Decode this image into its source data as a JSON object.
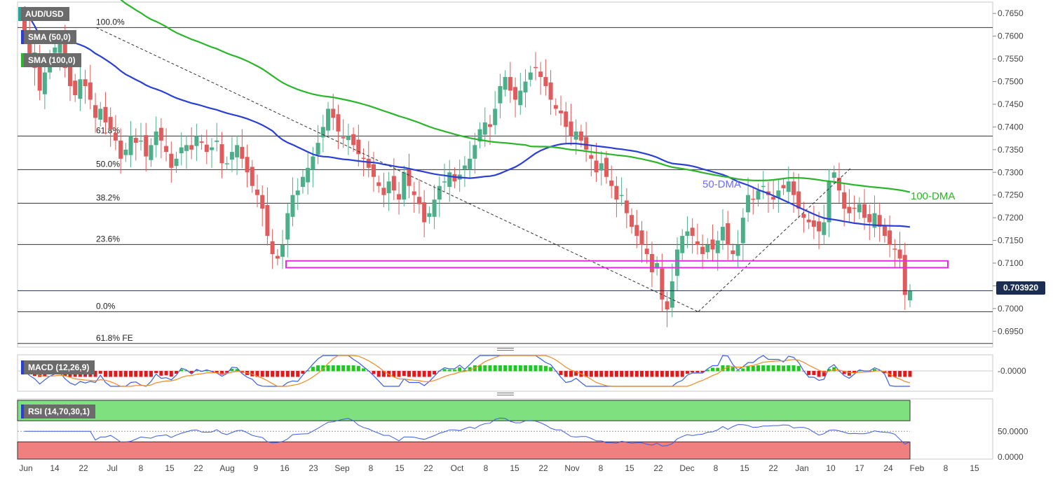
{
  "chart_data": {
    "type": "candlestick",
    "symbol": "AUD/USD",
    "legend": [
      {
        "label": "AUD/USD",
        "color": "#26a69a"
      },
      {
        "label": "SMA (50,0)",
        "color": "#2a3fd4"
      },
      {
        "label": "SMA (100,0)",
        "color": "#2ab52a"
      }
    ],
    "last_price": "0.703920",
    "price_axis": {
      "ylim": [
        0.6915,
        0.7675
      ],
      "ticks": [
        "0.7650",
        "0.7600",
        "0.7550",
        "0.7500",
        "0.7450",
        "0.7400",
        "0.7350",
        "0.7300",
        "0.7250",
        "0.7200",
        "0.7150",
        "0.7100",
        "0.7050",
        "0.7000",
        "0.6950"
      ]
    },
    "date_ticks": [
      "Jun",
      "14",
      "22",
      "Jul",
      "8",
      "15",
      "22",
      "Aug",
      "9",
      "16",
      "23",
      "Sep",
      "8",
      "15",
      "22",
      "Oct",
      "8",
      "15",
      "22",
      "Nov",
      "8",
      "15",
      "22",
      "Dec",
      "8",
      "15",
      "22",
      "Jan",
      "10",
      "17",
      "24",
      "Feb",
      "8",
      "15"
    ],
    "fibonacci": [
      {
        "label": "100.0%",
        "value": 0.7619
      },
      {
        "label": "61.8%",
        "value": 0.738
      },
      {
        "label": "50.0%",
        "value": 0.7306
      },
      {
        "label": "38.2%",
        "value": 0.7232
      },
      {
        "label": "23.6%",
        "value": 0.7141
      },
      {
        "label": "0.0%",
        "value": 0.6993
      },
      {
        "label": "61.8% FE",
        "value": 0.6923
      }
    ],
    "annotations": {
      "ma50_label": "50-DMA",
      "ma100_label": "100-DMA",
      "support_zone": [
        0.709,
        0.7105
      ],
      "retracement_line_from": {
        "date": "Jun 28",
        "value": 0.7619
      },
      "retracement_line_to": {
        "date": "Dec 3",
        "value": 0.6993
      }
    },
    "series": {
      "closes": [
        0.7605,
        0.756,
        0.753,
        0.748,
        0.752,
        0.7555,
        0.7575,
        0.759,
        0.753,
        0.749,
        0.747,
        0.7505,
        0.749,
        0.746,
        0.742,
        0.744,
        0.741,
        0.7395,
        0.737,
        0.733,
        0.735,
        0.738,
        0.7365,
        0.737,
        0.7335,
        0.736,
        0.739,
        0.737,
        0.7345,
        0.731,
        0.733,
        0.7355,
        0.736,
        0.735,
        0.738,
        0.7365,
        0.7345,
        0.7355,
        0.737,
        0.732,
        0.732,
        0.7345,
        0.736,
        0.733,
        0.73,
        0.727,
        0.725,
        0.722,
        0.716,
        0.712,
        0.711,
        0.714,
        0.721,
        0.725,
        0.726,
        0.729,
        0.731,
        0.7335,
        0.7365,
        0.74,
        0.744,
        0.742,
        0.739,
        0.7375,
        0.738,
        0.736,
        0.734,
        0.733,
        0.731,
        0.729,
        0.727,
        0.725,
        0.728,
        0.726,
        0.724,
        0.73,
        0.727,
        0.725,
        0.723,
        0.719,
        0.721,
        0.724,
        0.727,
        0.728,
        0.73,
        0.728,
        0.7295,
        0.7315,
        0.733,
        0.736,
        0.7395,
        0.741,
        0.74,
        0.744,
        0.749,
        0.751,
        0.748,
        0.746,
        0.748,
        0.75,
        0.752,
        0.753,
        0.751,
        0.749,
        0.746,
        0.744,
        0.743,
        0.74,
        0.738,
        0.739,
        0.737,
        0.735,
        0.733,
        0.73,
        0.732,
        0.729,
        0.727,
        0.724,
        0.725,
        0.721,
        0.718,
        0.716,
        0.714,
        0.712,
        0.708,
        0.71,
        0.702,
        0.6998,
        0.706,
        0.713,
        0.716,
        0.717,
        0.716,
        0.714,
        0.712,
        0.714,
        0.713,
        0.715,
        0.718,
        0.714,
        0.712,
        0.714,
        0.72,
        0.725,
        0.724,
        0.726,
        0.727,
        0.725,
        0.724,
        0.726,
        0.7265,
        0.728,
        0.725,
        0.722,
        0.72,
        0.719,
        0.718,
        0.717,
        0.719,
        0.728,
        0.73,
        0.726,
        0.722,
        0.721,
        0.722,
        0.723,
        0.72,
        0.719,
        0.721,
        0.718,
        0.716,
        0.714,
        0.713,
        0.711,
        0.703,
        0.7039
      ]
    },
    "macd": {
      "label": "MACD (12,26,9)",
      "tick": "-0.0000"
    },
    "rsi": {
      "label": "RSI (14,70,30,1)",
      "ticks": [
        "50.0000",
        "0.0000"
      ],
      "upper": 70,
      "lower": 30
    }
  }
}
